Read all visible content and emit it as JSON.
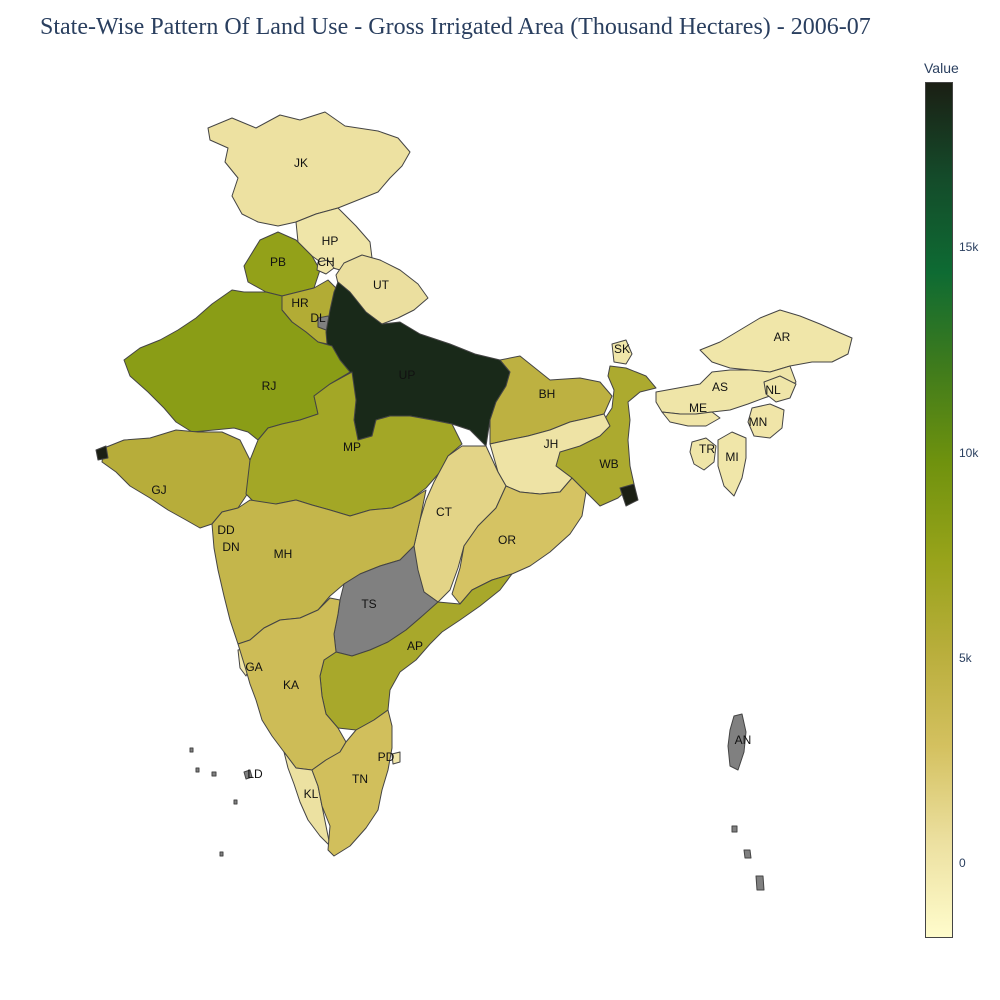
{
  "title": "State-Wise Pattern Of Land Use - Gross Irrigated Area (Thousand Hectares) - 2006-07",
  "colorbar": {
    "title": "Value",
    "colors": [
      "#fffccc",
      "#ece0a0",
      "#d4c160",
      "#b9ae3c",
      "#97a31a",
      "#6f920e",
      "#3f7b1c",
      "#0e6b33",
      "#144b2a",
      "#1b1f14"
    ],
    "ticks": [
      {
        "label": "0",
        "value": 0
      },
      {
        "label": "5k",
        "value": 5000
      },
      {
        "label": "10k",
        "value": 10000
      },
      {
        "label": "15k",
        "value": 15000
      }
    ],
    "min": -1800,
    "max": 19000
  },
  "map": {
    "nodata_color": "#808080",
    "states": [
      {
        "code": "JK",
        "value": 450
      },
      {
        "code": "HP",
        "value": 110
      },
      {
        "code": "PB",
        "value": 7700
      },
      {
        "code": "CH",
        "value": 2
      },
      {
        "code": "HR",
        "value": 5600
      },
      {
        "code": "DL",
        "value": null
      },
      {
        "code": "UT",
        "value": 560
      },
      {
        "code": "UP",
        "value": 18500
      },
      {
        "code": "RJ",
        "value": 8200
      },
      {
        "code": "BH",
        "value": 4800
      },
      {
        "code": "SK",
        "value": 15
      },
      {
        "code": "AR",
        "value": 55
      },
      {
        "code": "AS",
        "value": 110
      },
      {
        "code": "NL",
        "value": 95
      },
      {
        "code": "ME",
        "value": 65
      },
      {
        "code": "MN",
        "value": 70
      },
      {
        "code": "TR",
        "value": 90
      },
      {
        "code": "MI",
        "value": 15
      },
      {
        "code": "WB",
        "value": 6000
      },
      {
        "code": "JH",
        "value": 250
      },
      {
        "code": "MP",
        "value": 6600
      },
      {
        "code": "GJ",
        "value": 5300
      },
      {
        "code": "DD",
        "value": 5
      },
      {
        "code": "DN",
        "value": 6
      },
      {
        "code": "MH",
        "value": 4200
      },
      {
        "code": "CT",
        "value": 1400
      },
      {
        "code": "OR",
        "value": 2700
      },
      {
        "code": "TS",
        "value": null
      },
      {
        "code": "AP",
        "value": 6300
      },
      {
        "code": "GA",
        "value": 40
      },
      {
        "code": "KA",
        "value": 3400
      },
      {
        "code": "KL",
        "value": 460
      },
      {
        "code": "PD",
        "value": 35
      },
      {
        "code": "TN",
        "value": 3100
      },
      {
        "code": "LD",
        "value": null
      },
      {
        "code": "AN",
        "value": null
      }
    ]
  }
}
